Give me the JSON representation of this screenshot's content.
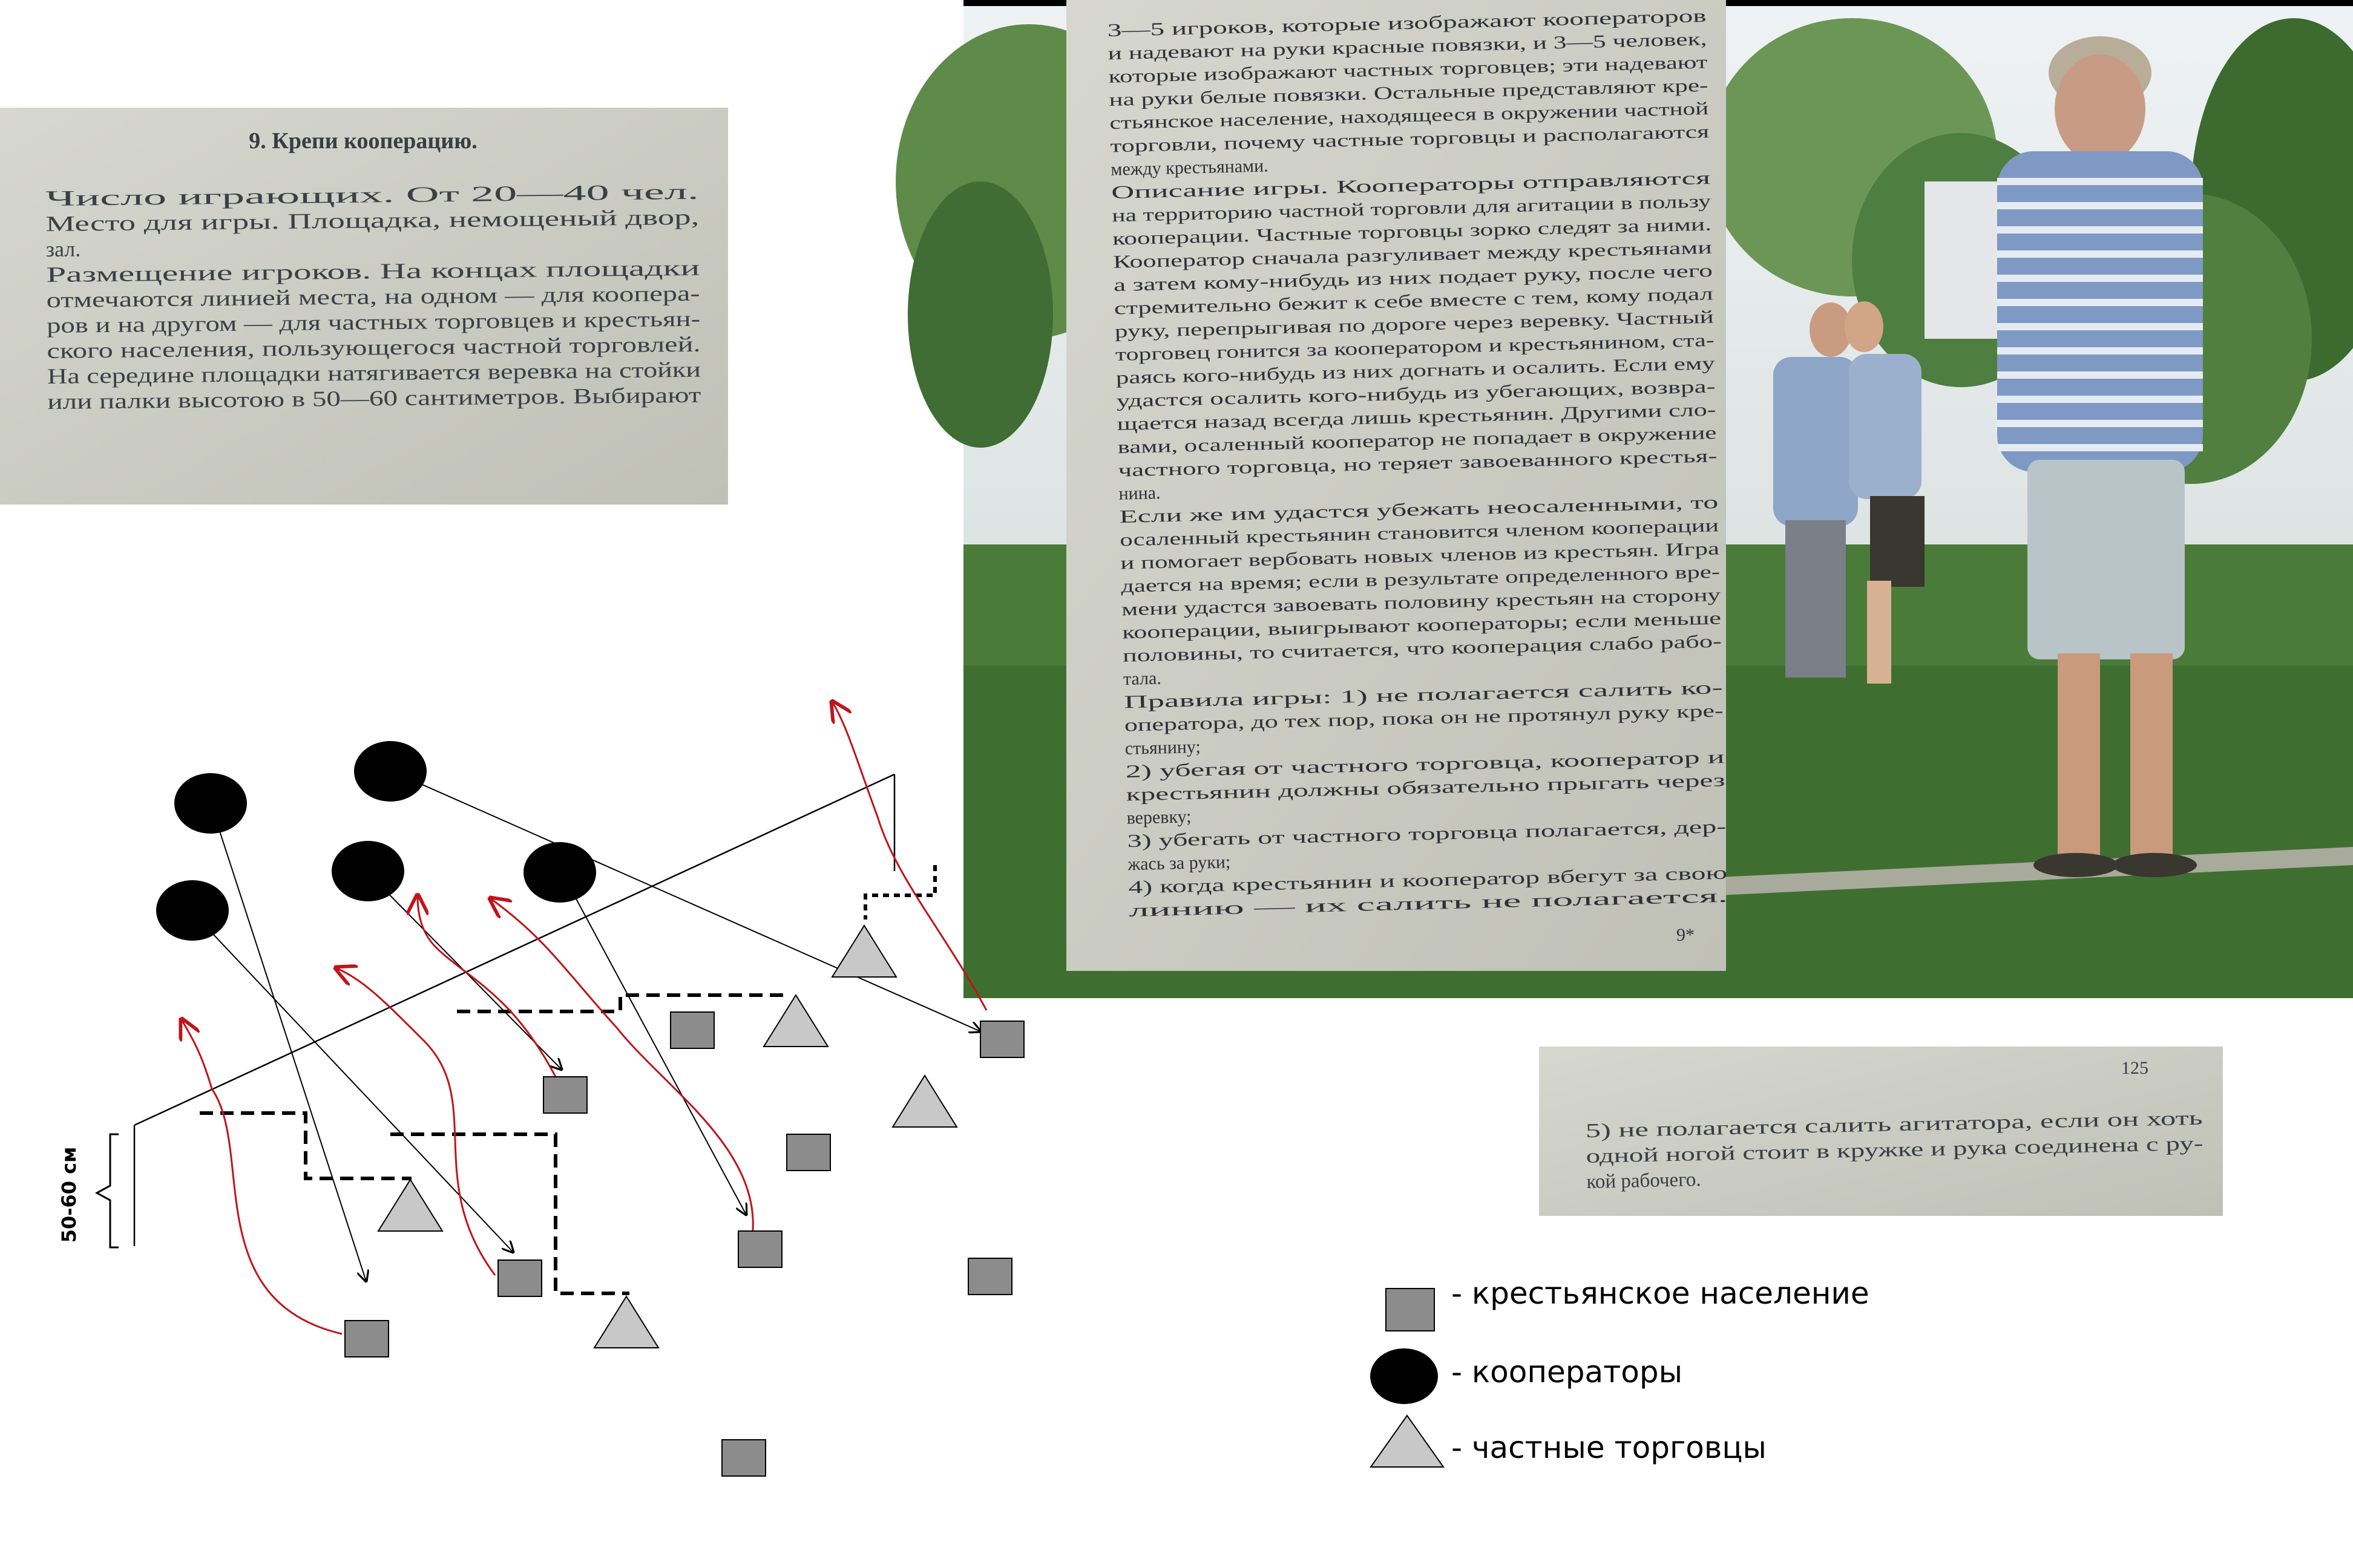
{
  "book_excerpt_top_left": {
    "heading": "9. Крепи кооперацию.",
    "lines": [
      "Число играющих. От 20—40 чел.",
      "Место для игры. Площадка, немощеный двор,",
      "зал.",
      "Размещение игроков. На концах площадки",
      "отмечаются линией места, на одном — для коопера-",
      "ров и на другом — для частных торговцев и крестьян-",
      "ского населения, пользующегося частной торговлей.",
      "На середине площадки натягивается веревка на стойки",
      "или палки высотою в 50—60 сантиметров. Выбирают"
    ]
  },
  "book_excerpt_main": {
    "lines": [
      "3—5 игроков, которые изображают кооператоров",
      "и надевают на руки красные повязки, и 3—5 человек,",
      "которые изображают частных торговцев; эти надевают",
      "на руки белые повязки. Остальные представляют кре-",
      "стьянское население, находящееся в окружении частной",
      "торговли, почему частные торговцы и располагаются",
      "между крестьянами.",
      "Описание игры. Кооператоры отправляются",
      "на территорию частной торговли для агитации в пользу",
      "кооперации. Частные торговцы зорко следят за ними.",
      "Кооператор сначала разгуливает между крестьянами",
      "а затем кому-нибудь из них подает руку, после чего",
      "стремительно бежит к себе вместе с тем, кому подал",
      "руку, перепрыгивая по дороге через веревку. Частный",
      "торговец гонится за кооператором и крестьянином, ста-",
      "раясь кого-нибудь из них догнать и осалить. Если ему",
      "удастся осалить кого-нибудь из убегающих, возвра-",
      "щается назад всегда лишь крестьянин. Другими сло-",
      "вами, осаленный кооператор не попадает в окружение",
      "частного торговца, но теряет завоеванного крестья-",
      "нина.",
      "Если же им удастся убежать неосаленными, то",
      "осаленный крестьянин становится членом кооперации",
      "и помогает вербовать новых членов из крестьян. Игра",
      "дается на время; если в результате определенного вре-",
      "мени удастся завоевать половину крестьян на сторону",
      "кооперации, выигрывают кооператоры; если меньше",
      "половины, то считается, что кооперация слабо рабо-",
      "тала.",
      "Правила игры: 1) не полагается салить ко-",
      "оператора, до тех пор, пока он не протянул руку кре-",
      "стьянину;",
      "2) убегая от частного торговца, кооператор и",
      "крестьянин должны обязательно прыгать через",
      "веревку;",
      "3) убегать от частного торговца полагается, дер-",
      "жась за руки;",
      "4) когда крестьянин и кооператор вбегут за свою",
      "линию — их салить не полагается."
    ],
    "page_number": "9*"
  },
  "book_excerpt_bottom_right": {
    "page_number": "125",
    "lines": [
      "5) не полагается салить агитатора, если он хоть",
      "одной ногой стоит в кружке и рука соединена с ру-",
      "кой рабочего."
    ]
  },
  "diagram": {
    "height_label": "50-60 см"
  },
  "legend": {
    "items": [
      {
        "shape": "square",
        "label": "- крестьянское население"
      },
      {
        "shape": "circle",
        "label": "- кооператоры"
      },
      {
        "shape": "triangle",
        "label": "- частные торговцы"
      }
    ]
  },
  "colors": {
    "square_fill": "#8c8c8c",
    "circle_fill": "#000000",
    "triangle_fill": "#c8c8c8",
    "arrow_red": "#c0141a",
    "arrow_black": "#000000",
    "paper": "#cfd0c7",
    "paper_dark": "#b9bab0",
    "grass": "#4a7a3a"
  }
}
